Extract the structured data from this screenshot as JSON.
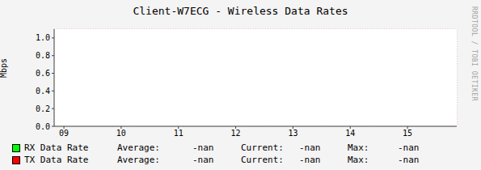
{
  "chart_data": {
    "type": "line",
    "title": "Client-W7ECG - Wireless Data Rates",
    "y_label": "Mbps",
    "watermark": "RRDTOOL / TOBI OETIKER",
    "x": [
      9,
      10,
      11,
      12,
      13,
      14,
      15
    ],
    "xlim": [
      8.83,
      15.86
    ],
    "xticks": [
      {
        "value": 9,
        "label": "09"
      },
      {
        "value": 10,
        "label": "10"
      },
      {
        "value": 11,
        "label": "11"
      },
      {
        "value": 12,
        "label": "12"
      },
      {
        "value": 13,
        "label": "13"
      },
      {
        "value": 14,
        "label": "14"
      },
      {
        "value": 15,
        "label": "15"
      }
    ],
    "ylim": [
      0,
      1.1
    ],
    "yticks": [
      {
        "value": 0,
        "label": "0.0"
      },
      {
        "value": 0.2,
        "label": "0.2"
      },
      {
        "value": 0.4,
        "label": "0.4"
      },
      {
        "value": 0.6,
        "label": "0.6"
      },
      {
        "value": 0.8,
        "label": "0.8"
      },
      {
        "value": 1,
        "label": "1.0"
      }
    ],
    "grid": true,
    "legend": "bottom",
    "stat_labels": [
      "Average:",
      "Current:",
      "Max:"
    ],
    "series": [
      {
        "name": "RX Data Rate",
        "color": "#00ff00",
        "values": [
          null,
          null,
          null,
          null,
          null,
          null,
          null
        ],
        "stats": [
          "-nan",
          "-nan",
          "-nan"
        ]
      },
      {
        "name": "TX Data Rate",
        "color": "#ff0000",
        "values": [
          null,
          null,
          null,
          null,
          null,
          null,
          null
        ],
        "stats": [
          "-nan",
          "-nan",
          "-nan"
        ]
      }
    ]
  }
}
